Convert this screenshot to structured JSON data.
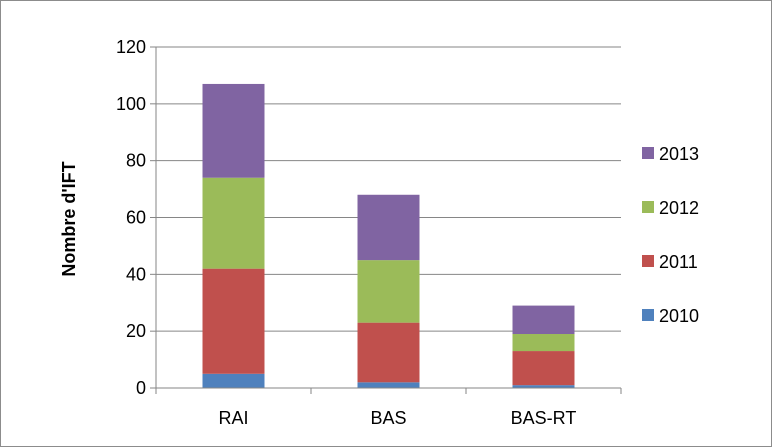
{
  "chart_data": {
    "type": "bar",
    "stacked": true,
    "categories": [
      "RAI",
      "BAS",
      "BAS-RT"
    ],
    "series": [
      {
        "name": "2010",
        "color": "#4f81bd",
        "values": [
          5,
          2,
          1
        ]
      },
      {
        "name": "2011",
        "color": "#c0504d",
        "values": [
          37,
          21,
          12
        ]
      },
      {
        "name": "2012",
        "color": "#9bbb59",
        "values": [
          32,
          22,
          6
        ]
      },
      {
        "name": "2013",
        "color": "#8064a2",
        "values": [
          33,
          23,
          10
        ]
      }
    ],
    "title": "",
    "xlabel": "",
    "ylabel": "Nombre d'IFT",
    "ylim": [
      0,
      120
    ],
    "yticks": [
      0,
      20,
      40,
      60,
      80,
      100,
      120
    ],
    "grid": true,
    "legend_position": "right"
  }
}
